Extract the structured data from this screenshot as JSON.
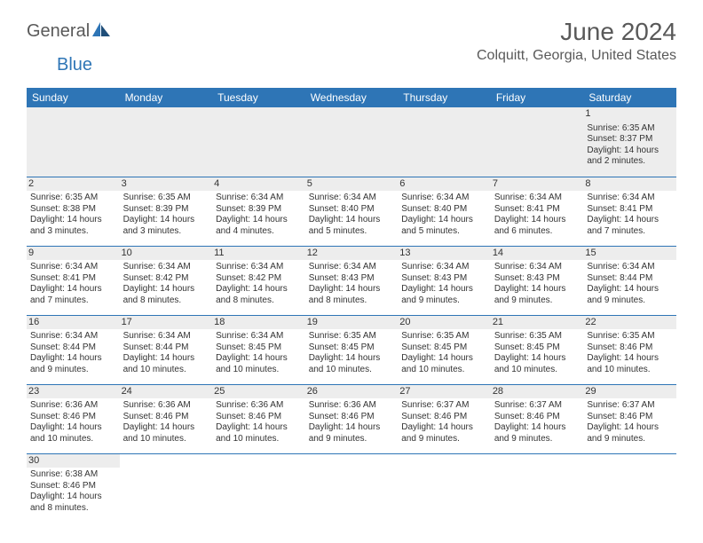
{
  "logo": {
    "text1": "General",
    "text2": "Blue"
  },
  "title": "June 2024",
  "location": "Colquitt, Georgia, United States",
  "colors": {
    "header_bg": "#2e75b6",
    "header_text": "#ffffff",
    "shade": "#ededed",
    "border": "#2e75b6",
    "text": "#333333",
    "title_text": "#595959"
  },
  "weekdays": [
    "Sunday",
    "Monday",
    "Tuesday",
    "Wednesday",
    "Thursday",
    "Friday",
    "Saturday"
  ],
  "weeks": [
    [
      null,
      null,
      null,
      null,
      null,
      null,
      {
        "d": "1",
        "sr": "6:35 AM",
        "ss": "8:37 PM",
        "dl": "14 hours and 2 minutes."
      }
    ],
    [
      {
        "d": "2",
        "sr": "6:35 AM",
        "ss": "8:38 PM",
        "dl": "14 hours and 3 minutes."
      },
      {
        "d": "3",
        "sr": "6:35 AM",
        "ss": "8:39 PM",
        "dl": "14 hours and 3 minutes."
      },
      {
        "d": "4",
        "sr": "6:34 AM",
        "ss": "8:39 PM",
        "dl": "14 hours and 4 minutes."
      },
      {
        "d": "5",
        "sr": "6:34 AM",
        "ss": "8:40 PM",
        "dl": "14 hours and 5 minutes."
      },
      {
        "d": "6",
        "sr": "6:34 AM",
        "ss": "8:40 PM",
        "dl": "14 hours and 5 minutes."
      },
      {
        "d": "7",
        "sr": "6:34 AM",
        "ss": "8:41 PM",
        "dl": "14 hours and 6 minutes."
      },
      {
        "d": "8",
        "sr": "6:34 AM",
        "ss": "8:41 PM",
        "dl": "14 hours and 7 minutes."
      }
    ],
    [
      {
        "d": "9",
        "sr": "6:34 AM",
        "ss": "8:41 PM",
        "dl": "14 hours and 7 minutes."
      },
      {
        "d": "10",
        "sr": "6:34 AM",
        "ss": "8:42 PM",
        "dl": "14 hours and 8 minutes."
      },
      {
        "d": "11",
        "sr": "6:34 AM",
        "ss": "8:42 PM",
        "dl": "14 hours and 8 minutes."
      },
      {
        "d": "12",
        "sr": "6:34 AM",
        "ss": "8:43 PM",
        "dl": "14 hours and 8 minutes."
      },
      {
        "d": "13",
        "sr": "6:34 AM",
        "ss": "8:43 PM",
        "dl": "14 hours and 9 minutes."
      },
      {
        "d": "14",
        "sr": "6:34 AM",
        "ss": "8:43 PM",
        "dl": "14 hours and 9 minutes."
      },
      {
        "d": "15",
        "sr": "6:34 AM",
        "ss": "8:44 PM",
        "dl": "14 hours and 9 minutes."
      }
    ],
    [
      {
        "d": "16",
        "sr": "6:34 AM",
        "ss": "8:44 PM",
        "dl": "14 hours and 9 minutes."
      },
      {
        "d": "17",
        "sr": "6:34 AM",
        "ss": "8:44 PM",
        "dl": "14 hours and 10 minutes."
      },
      {
        "d": "18",
        "sr": "6:34 AM",
        "ss": "8:45 PM",
        "dl": "14 hours and 10 minutes."
      },
      {
        "d": "19",
        "sr": "6:35 AM",
        "ss": "8:45 PM",
        "dl": "14 hours and 10 minutes."
      },
      {
        "d": "20",
        "sr": "6:35 AM",
        "ss": "8:45 PM",
        "dl": "14 hours and 10 minutes."
      },
      {
        "d": "21",
        "sr": "6:35 AM",
        "ss": "8:45 PM",
        "dl": "14 hours and 10 minutes."
      },
      {
        "d": "22",
        "sr": "6:35 AM",
        "ss": "8:46 PM",
        "dl": "14 hours and 10 minutes."
      }
    ],
    [
      {
        "d": "23",
        "sr": "6:36 AM",
        "ss": "8:46 PM",
        "dl": "14 hours and 10 minutes."
      },
      {
        "d": "24",
        "sr": "6:36 AM",
        "ss": "8:46 PM",
        "dl": "14 hours and 10 minutes."
      },
      {
        "d": "25",
        "sr": "6:36 AM",
        "ss": "8:46 PM",
        "dl": "14 hours and 10 minutes."
      },
      {
        "d": "26",
        "sr": "6:36 AM",
        "ss": "8:46 PM",
        "dl": "14 hours and 9 minutes."
      },
      {
        "d": "27",
        "sr": "6:37 AM",
        "ss": "8:46 PM",
        "dl": "14 hours and 9 minutes."
      },
      {
        "d": "28",
        "sr": "6:37 AM",
        "ss": "8:46 PM",
        "dl": "14 hours and 9 minutes."
      },
      {
        "d": "29",
        "sr": "6:37 AM",
        "ss": "8:46 PM",
        "dl": "14 hours and 9 minutes."
      }
    ],
    [
      {
        "d": "30",
        "sr": "6:38 AM",
        "ss": "8:46 PM",
        "dl": "14 hours and 8 minutes."
      },
      null,
      null,
      null,
      null,
      null,
      null
    ]
  ],
  "labels": {
    "sunrise": "Sunrise:",
    "sunset": "Sunset:",
    "daylight": "Daylight:"
  }
}
